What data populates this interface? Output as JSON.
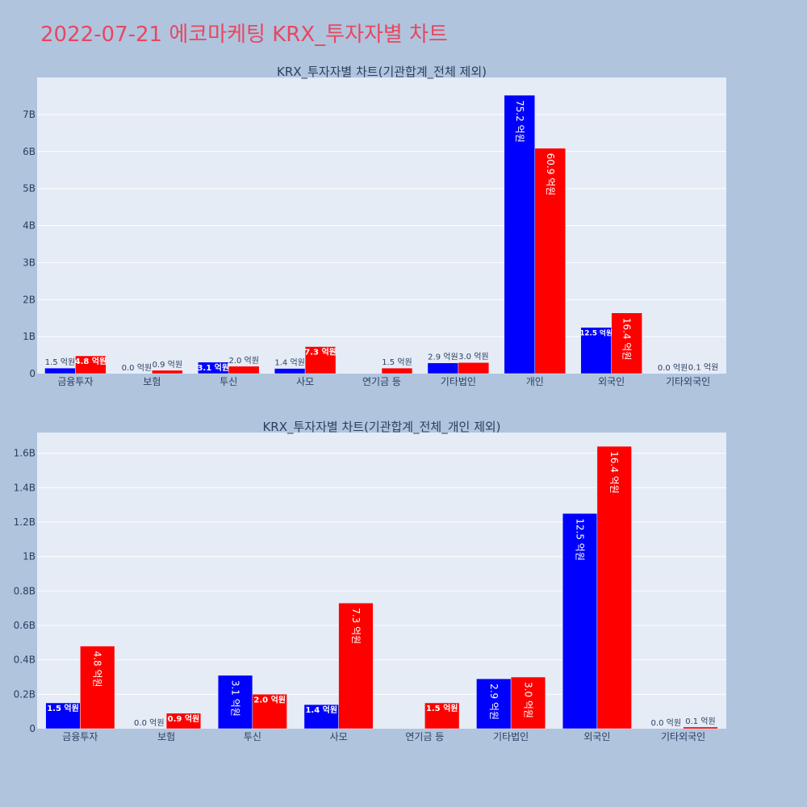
{
  "page": {
    "title": "2022-07-21 에코마케팅 KRX_투자자별 차트"
  },
  "colors": {
    "buy": "#0000ff",
    "sell": "#ff0000",
    "plot_bg": "#e5ecf6",
    "paper_bg": "#b0c4de"
  },
  "chart_data": [
    {
      "type": "bar",
      "title": "KRX_투자자별 차트(기관합계_전체 제외)",
      "categories": [
        "금융투자",
        "보험",
        "투신",
        "사모",
        "연기금 등",
        "기타법인",
        "개인",
        "외국인",
        "기타외국인"
      ],
      "series": [
        {
          "values": [
            150000000,
            0,
            310000000,
            140000000,
            0,
            290000000,
            7520000000,
            1250000000,
            0
          ],
          "labels": [
            "1.5 억원",
            "0.0 억원",
            "3.1 억원",
            "1.4 억원",
            "",
            "2.9 억원",
            "75.2 억원",
            "12.5 억원",
            "0.0 억원"
          ]
        },
        {
          "values": [
            480000000,
            90000000,
            200000000,
            730000000,
            150000000,
            300000000,
            6090000000,
            1640000000,
            10000000
          ],
          "labels": [
            "4.8 억원",
            "0.9 억원",
            "2.0 억원",
            "7.3 억원",
            "1.5 억원",
            "3.0 억원",
            "60.9 억원",
            "16.4 억원",
            "0.1 억원"
          ]
        }
      ],
      "ylim": [
        0,
        8000000000
      ],
      "yticks": [
        0,
        1000000000,
        2000000000,
        3000000000,
        4000000000,
        5000000000,
        6000000000,
        7000000000
      ],
      "ytick_labels": [
        "0",
        "1B",
        "2B",
        "3B",
        "4B",
        "5B",
        "6B",
        "7B"
      ],
      "grid": true
    },
    {
      "type": "bar",
      "title": "KRX_투자자별 차트(기관합계_전체_개인 제외)",
      "categories": [
        "금융투자",
        "보험",
        "투신",
        "사모",
        "연기금 등",
        "기타법인",
        "외국인",
        "기타외국인"
      ],
      "series": [
        {
          "values": [
            150000000,
            0,
            310000000,
            140000000,
            0,
            290000000,
            1250000000,
            0
          ],
          "labels": [
            "1.5 억원",
            "0.0 억원",
            "3.1 억원",
            "1.4 억원",
            "",
            "2.9 억원",
            "12.5 억원",
            "0.0 억원"
          ]
        },
        {
          "values": [
            480000000,
            90000000,
            200000000,
            730000000,
            150000000,
            300000000,
            1640000000,
            10000000
          ],
          "labels": [
            "4.8 억원",
            "0.9 억원",
            "2.0 억원",
            "7.3 억원",
            "1.5 억원",
            "3.0 억원",
            "16.4 억원",
            "0.1 억원"
          ]
        }
      ],
      "ylim": [
        0,
        1720000000
      ],
      "yticks": [
        0,
        200000000,
        400000000,
        600000000,
        800000000,
        1000000000,
        1200000000,
        1400000000,
        1600000000
      ],
      "ytick_labels": [
        "0",
        "0.2B",
        "0.4B",
        "0.6B",
        "0.8B",
        "1B",
        "1.2B",
        "1.4B",
        "1.6B"
      ],
      "grid": true
    }
  ]
}
